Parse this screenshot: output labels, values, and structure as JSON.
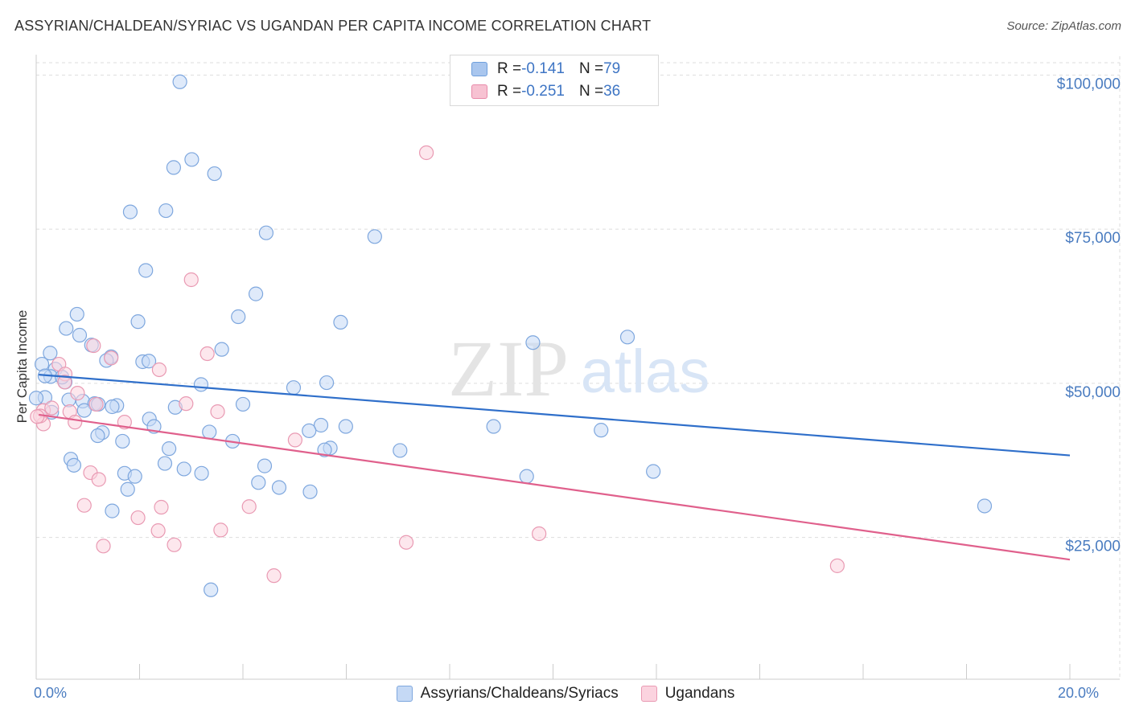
{
  "title": "ASSYRIAN/CHALDEAN/SYRIAC VS UGANDAN PER CAPITA INCOME CORRELATION CHART",
  "source": "Source: ZipAtlas.com",
  "watermark": {
    "zip": "ZIP",
    "atlas": "atlas"
  },
  "stats": [
    {
      "r_label": "R = ",
      "r_value": "-0.141",
      "n_label": "N = ",
      "n_value": "79",
      "color": "#a9c6ee",
      "border": "#6f9fdc"
    },
    {
      "r_label": "R = ",
      "r_value": "-0.251",
      "n_label": "N = ",
      "n_value": "36",
      "color": "#f7c2d2",
      "border": "#e88aa9"
    }
  ],
  "legend": [
    {
      "label": "Assyrians/Chaldeans/Syriacs",
      "color": "#c5d9f5",
      "border": "#7ea7de"
    },
    {
      "label": "Ugandans",
      "color": "#fbd3df",
      "border": "#e99ab3"
    }
  ],
  "chart_data": {
    "type": "scatter",
    "title": "ASSYRIAN/CHALDEAN/SYRIAC VS UGANDAN PER CAPITA INCOME CORRELATION CHART",
    "xlabel": "",
    "ylabel": "Per Capita Income",
    "xlim": [
      0,
      20
    ],
    "ylim": [
      2000,
      102000
    ],
    "x_tick_labels": [
      "0.0%",
      "20.0%"
    ],
    "y_ticks": [
      {
        "value": 25000,
        "label": "$25,000"
      },
      {
        "value": 50000,
        "label": "$50,000"
      },
      {
        "value": 75000,
        "label": "$75,000"
      },
      {
        "value": 100000,
        "label": "$100,000"
      }
    ],
    "grid": true,
    "legend_position": "bottom",
    "series": [
      {
        "name": "Assyrians/Chaldeans/Syriacs",
        "color": "#7ea7de",
        "fill": "#c5d9f5",
        "trend": {
          "x": [
            0.05,
            20
          ],
          "y": [
            51400,
            38300
          ],
          "color": "#2f6fca"
        },
        "points": [
          [
            2.78,
            98900
          ],
          [
            2.66,
            85000
          ],
          [
            3.01,
            86300
          ],
          [
            3.45,
            84000
          ],
          [
            1.82,
            77800
          ],
          [
            2.51,
            78000
          ],
          [
            4.45,
            74400
          ],
          [
            6.55,
            73800
          ],
          [
            2.12,
            68300
          ],
          [
            4.25,
            64500
          ],
          [
            0.79,
            61200
          ],
          [
            1.97,
            60000
          ],
          [
            3.91,
            60800
          ],
          [
            5.89,
            59900
          ],
          [
            0.58,
            58900
          ],
          [
            0.84,
            57800
          ],
          [
            1.07,
            56200
          ],
          [
            3.59,
            55500
          ],
          [
            0.27,
            54900
          ],
          [
            9.61,
            56600
          ],
          [
            11.44,
            57500
          ],
          [
            1.45,
            54300
          ],
          [
            1.36,
            53700
          ],
          [
            2.06,
            53500
          ],
          [
            2.18,
            53600
          ],
          [
            0.11,
            53100
          ],
          [
            0.37,
            52300
          ],
          [
            0.56,
            50200
          ],
          [
            0.28,
            51100
          ],
          [
            0.5,
            51000
          ],
          [
            0.17,
            51200
          ],
          [
            3.19,
            49800
          ],
          [
            4.98,
            49300
          ],
          [
            5.62,
            50100
          ],
          [
            0.17,
            47700
          ],
          [
            0.63,
            47300
          ],
          [
            0.9,
            47100
          ],
          [
            1.13,
            46700
          ],
          [
            1.2,
            46600
          ],
          [
            1.56,
            46400
          ],
          [
            1.47,
            46200
          ],
          [
            2.69,
            46100
          ],
          [
            4.0,
            46600
          ],
          [
            0.3,
            45300
          ],
          [
            0.93,
            45600
          ],
          [
            2.19,
            44200
          ],
          [
            2.28,
            43000
          ],
          [
            5.51,
            43200
          ],
          [
            5.99,
            43000
          ],
          [
            8.85,
            43000
          ],
          [
            10.93,
            42400
          ],
          [
            5.28,
            42300
          ],
          [
            3.35,
            42100
          ],
          [
            1.28,
            42000
          ],
          [
            1.19,
            41500
          ],
          [
            3.8,
            40600
          ],
          [
            1.67,
            40600
          ],
          [
            2.57,
            39400
          ],
          [
            5.69,
            39500
          ],
          [
            5.58,
            39200
          ],
          [
            7.04,
            39100
          ],
          [
            0.67,
            37700
          ],
          [
            2.49,
            37000
          ],
          [
            0.73,
            36700
          ],
          [
            4.42,
            36600
          ],
          [
            2.86,
            36100
          ],
          [
            11.94,
            35700
          ],
          [
            1.71,
            35400
          ],
          [
            3.2,
            35400
          ],
          [
            1.91,
            34900
          ],
          [
            9.49,
            34900
          ],
          [
            4.3,
            33900
          ],
          [
            4.7,
            33100
          ],
          [
            1.77,
            32800
          ],
          [
            5.3,
            32400
          ],
          [
            1.47,
            29300
          ],
          [
            18.35,
            30100
          ],
          [
            3.38,
            16500
          ],
          [
            0.0,
            47600
          ]
        ]
      },
      {
        "name": "Ugandans",
        "color": "#e99ab3",
        "fill": "#fbd3df",
        "trend": {
          "x": [
            0.05,
            20
          ],
          "y": [
            44900,
            21400
          ],
          "color": "#e0608c"
        },
        "points": [
          [
            7.55,
            87400
          ],
          [
            3.0,
            66800
          ],
          [
            1.11,
            56100
          ],
          [
            3.31,
            54800
          ],
          [
            1.45,
            54100
          ],
          [
            0.44,
            53100
          ],
          [
            2.38,
            52200
          ],
          [
            0.56,
            51500
          ],
          [
            0.55,
            50200
          ],
          [
            0.8,
            48400
          ],
          [
            1.16,
            46600
          ],
          [
            2.9,
            46700
          ],
          [
            3.51,
            45400
          ],
          [
            0.14,
            45600
          ],
          [
            0.3,
            46000
          ],
          [
            0.65,
            45400
          ],
          [
            0.75,
            43700
          ],
          [
            1.71,
            43700
          ],
          [
            0.14,
            43400
          ],
          [
            5.01,
            40800
          ],
          [
            0.08,
            44700
          ],
          [
            1.05,
            35500
          ],
          [
            1.21,
            34400
          ],
          [
            0.93,
            30200
          ],
          [
            2.42,
            29900
          ],
          [
            4.12,
            30000
          ],
          [
            1.97,
            28200
          ],
          [
            2.36,
            26100
          ],
          [
            3.57,
            26200
          ],
          [
            9.73,
            25600
          ],
          [
            1.3,
            23600
          ],
          [
            2.67,
            23800
          ],
          [
            7.16,
            24200
          ],
          [
            15.5,
            20400
          ],
          [
            4.6,
            18800
          ],
          [
            0.02,
            44600
          ]
        ]
      }
    ]
  }
}
